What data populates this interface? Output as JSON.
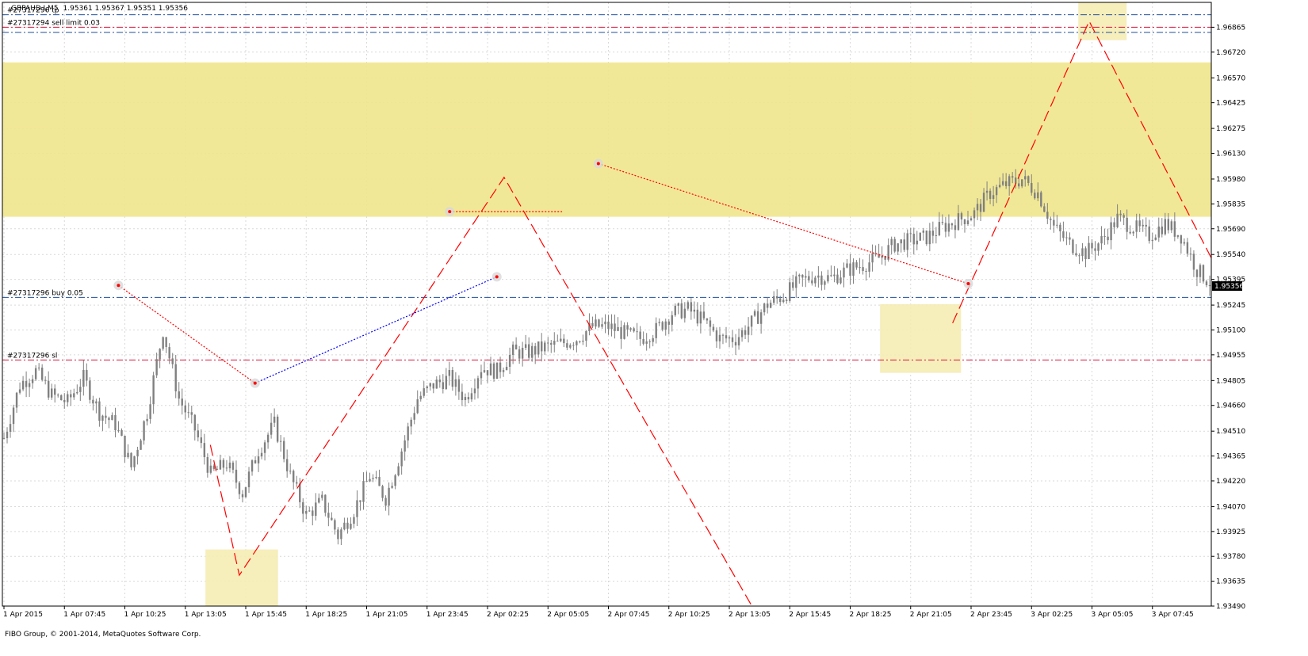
{
  "header": {
    "symbol": "GBPAUD.I,M5",
    "ohlc": "1.95361 1.95367 1.95351 1.95356"
  },
  "footer": {
    "copyright": "FIBO Group, © 2001-2014, MetaQuotes Software Corp."
  },
  "colors": {
    "background": "#ffffff",
    "grid": "#d9d9d9",
    "candle": "#808080",
    "zone": "#f0e68c",
    "zone_light": "#f5ecb4",
    "red": "#ff0000",
    "blue": "#0000ff",
    "order_line_blue": "#1f4e9c",
    "order_line_red": "#dc143c",
    "current_price_bg": "#000000"
  },
  "chart_data": {
    "type": "candlestick",
    "symbol": "GBPAUD.I",
    "timeframe": "M5",
    "ylim": [
      1.9349,
      1.9701
    ],
    "y_ticks": [
      "1.96865",
      "1.96720",
      "1.96570",
      "1.96425",
      "1.96275",
      "1.96130",
      "1.95980",
      "1.95835",
      "1.95690",
      "1.95540",
      "1.95395",
      "1.95245",
      "1.95100",
      "1.94955",
      "1.94805",
      "1.94660",
      "1.94510",
      "1.94365",
      "1.94220",
      "1.94070",
      "1.93925",
      "1.93780",
      "1.93635",
      "1.93490"
    ],
    "x_ticks": [
      "1 Apr 2015",
      "1 Apr 07:45",
      "1 Apr 10:25",
      "1 Apr 13:05",
      "1 Apr 15:45",
      "1 Apr 18:25",
      "1 Apr 21:05",
      "1 Apr 23:45",
      "2 Apr 02:25",
      "2 Apr 05:05",
      "2 Apr 07:45",
      "2 Apr 10:25",
      "2 Apr 13:05",
      "2 Apr 15:45",
      "2 Apr 18:25",
      "2 Apr 21:05",
      "2 Apr 23:45",
      "3 Apr 02:25",
      "3 Apr 05:05",
      "3 Apr 07:45"
    ],
    "current_price": "1.95356",
    "bars_count": 380,
    "price_path": [
      [
        0,
        1.9447
      ],
      [
        5,
        1.9478
      ],
      [
        10,
        1.9486
      ],
      [
        15,
        1.9472
      ],
      [
        20,
        1.9468
      ],
      [
        25,
        1.9482
      ],
      [
        30,
        1.9462
      ],
      [
        35,
        1.9455
      ],
      [
        40,
        1.943
      ],
      [
        45,
        1.9462
      ],
      [
        50,
        1.951
      ],
      [
        55,
        1.947
      ],
      [
        60,
        1.9452
      ],
      [
        65,
        1.9426
      ],
      [
        70,
        1.9432
      ],
      [
        75,
        1.9415
      ],
      [
        80,
        1.944
      ],
      [
        85,
        1.9455
      ],
      [
        90,
        1.9425
      ],
      [
        95,
        1.9402
      ],
      [
        100,
        1.941
      ],
      [
        105,
        1.939
      ],
      [
        110,
        1.9405
      ],
      [
        115,
        1.9425
      ],
      [
        120,
        1.9412
      ],
      [
        125,
        1.944
      ],
      [
        130,
        1.947
      ],
      [
        135,
        1.9478
      ],
      [
        140,
        1.9482
      ],
      [
        145,
        1.947
      ],
      [
        150,
        1.9488
      ],
      [
        155,
        1.9486
      ],
      [
        160,
        1.9497
      ],
      [
        165,
        1.9497
      ],
      [
        170,
        1.95
      ],
      [
        175,
        1.9502
      ],
      [
        180,
        1.9505
      ],
      [
        185,
        1.9512
      ],
      [
        190,
        1.9512
      ],
      [
        195,
        1.9508
      ],
      [
        200,
        1.9505
      ],
      [
        205,
        1.951
      ],
      [
        210,
        1.952
      ],
      [
        215,
        1.9522
      ],
      [
        220,
        1.9515
      ],
      [
        225,
        1.9505
      ],
      [
        230,
        1.9505
      ],
      [
        235,
        1.9514
      ],
      [
        240,
        1.9525
      ],
      [
        245,
        1.953
      ],
      [
        250,
        1.9538
      ],
      [
        255,
        1.9542
      ],
      [
        260,
        1.954
      ],
      [
        265,
        1.9545
      ],
      [
        270,
        1.9548
      ],
      [
        275,
        1.9552
      ],
      [
        280,
        1.956
      ],
      [
        285,
        1.9562
      ],
      [
        290,
        1.9564
      ],
      [
        295,
        1.957
      ],
      [
        300,
        1.9574
      ],
      [
        305,
        1.9578
      ],
      [
        310,
        1.959
      ],
      [
        315,
        1.9595
      ],
      [
        320,
        1.9598
      ],
      [
        325,
        1.959
      ],
      [
        330,
        1.957
      ],
      [
        335,
        1.956
      ],
      [
        340,
        1.9555
      ],
      [
        345,
        1.9562
      ],
      [
        350,
        1.9575
      ],
      [
        355,
        1.957
      ],
      [
        360,
        1.9565
      ],
      [
        365,
        1.9572
      ],
      [
        370,
        1.9565
      ],
      [
        375,
        1.9545
      ],
      [
        380,
        1.9536
      ]
    ],
    "horizontal_lines": [
      {
        "label": "#27317296 tp",
        "price": 1.96938,
        "style": "dashdot",
        "color_key": "order_line_blue"
      },
      {
        "label": "#27317294 sell limit 0.03",
        "price": 1.96865,
        "style": "dashdot",
        "color_key": "order_line_red"
      },
      {
        "label": "",
        "price": 1.96835,
        "style": "dashdot",
        "color_key": "order_line_blue"
      },
      {
        "label": "#27317296 buy 0.05",
        "price": 1.9529,
        "style": "dashdot",
        "color_key": "order_line_blue"
      },
      {
        "label": "#27317296 sl",
        "price": 1.94925,
        "style": "dashdot",
        "color_key": "order_line_red"
      }
    ],
    "zones": [
      {
        "name": "upper-resistance-zone",
        "x_from": 0.0,
        "x_to": 1.0,
        "y_from": 1.9576,
        "y_to": 1.9666
      },
      {
        "name": "lower-left-zone",
        "x_from": 0.168,
        "x_to": 0.228,
        "y_from": 1.9349,
        "y_to": 1.9382
      },
      {
        "name": "right-support-zone",
        "x_from": 0.726,
        "x_to": 0.793,
        "y_from": 1.9485,
        "y_to": 1.9525
      },
      {
        "name": "top-target-zone",
        "x_from": 0.89,
        "x_to": 0.93,
        "y_from": 1.9679,
        "y_to": 1.9701
      }
    ],
    "zigzag_red_dashed": [
      [
        0.172,
        1.9443
      ],
      [
        0.196,
        1.9367
      ],
      [
        0.415,
        1.9599
      ],
      [
        0.62,
        1.9349
      ]
    ],
    "zigzag_red_dashed_2": [
      [
        0.786,
        1.9514
      ],
      [
        0.899,
        1.969
      ],
      [
        1.0,
        1.9552
      ]
    ],
    "dotted_red": [
      [
        [
          0.096,
          1.9536
        ],
        [
          0.209,
          1.9479
        ]
      ],
      [
        [
          0.37,
          1.9579
        ],
        [
          0.463,
          1.9579
        ]
      ],
      [
        [
          0.493,
          1.9607
        ],
        [
          0.799,
          1.9537
        ]
      ]
    ],
    "dotted_blue": [
      [
        [
          0.209,
          1.9479
        ],
        [
          0.409,
          1.9541
        ]
      ]
    ]
  }
}
